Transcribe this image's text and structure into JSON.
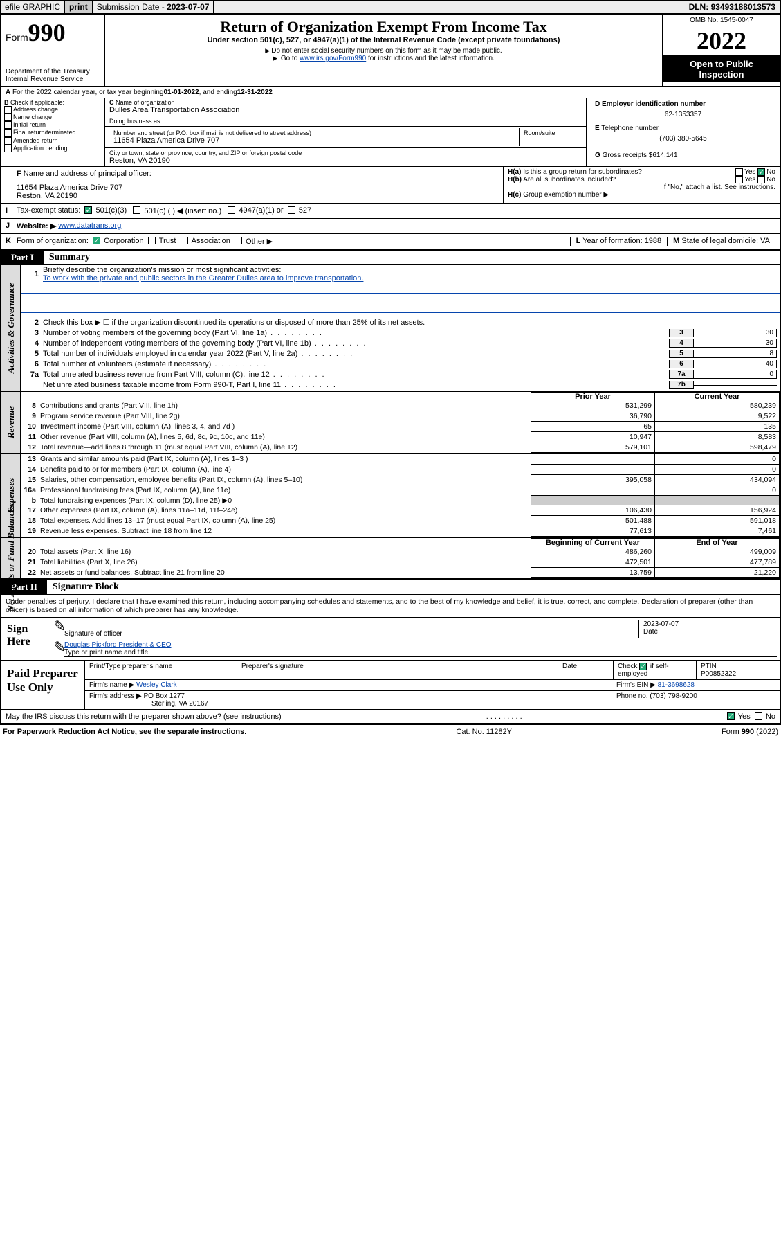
{
  "topbar": {
    "efile": "efile GRAPHIC",
    "print": "print",
    "subdate_label": "Submission Date - ",
    "subdate": "2023-07-07",
    "dln_label": "DLN: ",
    "dln": "93493188013573"
  },
  "header": {
    "form_prefix": "Form",
    "form_number": "990",
    "dept1": "Department of the Treasury",
    "dept2": "Internal Revenue Service",
    "title": "Return of Organization Exempt From Income Tax",
    "subtitle": "Under section 501(c), 527, or 4947(a)(1) of the Internal Revenue Code (except private foundations)",
    "note1": "Do not enter social security numbers on this form as it may be made public.",
    "note2a": "Go to ",
    "note2_link": "www.irs.gov/Form990",
    "note2b": " for instructions and the latest information.",
    "omb": "OMB No. 1545-0047",
    "year": "2022",
    "open": "Open to Public Inspection"
  },
  "A": {
    "text": "For the 2022 calendar year, or tax year beginning ",
    "begin": "01-01-2022",
    "mid": " , and ending ",
    "end": "12-31-2022"
  },
  "B": {
    "label": "Check if applicable:",
    "opts": [
      "Address change",
      "Name change",
      "Initial return",
      "Final return/terminated",
      "Amended return",
      "Application pending"
    ]
  },
  "C": {
    "name_label": "Name of organization",
    "name": "Dulles Area Transportation Association",
    "dba_label": "Doing business as",
    "dba": "",
    "addr_label": "Number and street (or P.O. box if mail is not delivered to street address)",
    "room_label": "Room/suite",
    "addr": "11654 Plaza America Drive 707",
    "city_label": "City or town, state or province, country, and ZIP or foreign postal code",
    "city": "Reston, VA  20190"
  },
  "D": {
    "label": "Employer identification number",
    "val": "62-1353357"
  },
  "E": {
    "label": "Telephone number",
    "val": "(703) 380-5645"
  },
  "G": {
    "label": "Gross receipts $",
    "val": "614,141"
  },
  "F": {
    "label": "Name and address of principal officer:",
    "addr1": "11654 Plaza America Drive 707",
    "addr2": "Reston, VA  20190"
  },
  "H": {
    "a": "Is this a group return for subordinates?",
    "b": "Are all subordinates included?",
    "b2": "If \"No,\" attach a list. See instructions.",
    "c": "Group exemption number ▶",
    "yes": "Yes",
    "no": "No"
  },
  "I": {
    "label": "Tax-exempt status:",
    "opts": [
      "501(c)(3)",
      "501(c) (  ) ◀ (insert no.)",
      "4947(a)(1) or",
      "527"
    ]
  },
  "J": {
    "label": "Website: ▶",
    "val": "www.datatrans.org"
  },
  "K": {
    "label": "Form of organization:",
    "opts": [
      "Corporation",
      "Trust",
      "Association",
      "Other ▶"
    ]
  },
  "L": {
    "label": "Year of formation:",
    "val": "1988"
  },
  "M": {
    "label": "State of legal domicile:",
    "val": "VA"
  },
  "part1": {
    "tab": "Part I",
    "title": "Summary"
  },
  "summary": {
    "l1_label": "Briefly describe the organization's mission or most significant activities:",
    "l1_text": "To work with the private and public sectors in the Greater Dulles area to improve transportation.",
    "l2": "Check this box ▶ ☐ if the organization discontinued its operations or disposed of more than 25% of its net assets.",
    "rows_gov": [
      {
        "n": "3",
        "d": "Number of voting members of the governing body (Part VI, line 1a)",
        "k": "3",
        "v": "30"
      },
      {
        "n": "4",
        "d": "Number of independent voting members of the governing body (Part VI, line 1b)",
        "k": "4",
        "v": "30"
      },
      {
        "n": "5",
        "d": "Total number of individuals employed in calendar year 2022 (Part V, line 2a)",
        "k": "5",
        "v": "8"
      },
      {
        "n": "6",
        "d": "Total number of volunteers (estimate if necessary)",
        "k": "6",
        "v": "40"
      },
      {
        "n": "7a",
        "d": "Total unrelated business revenue from Part VIII, column (C), line 12",
        "k": "7a",
        "v": "0"
      },
      {
        "n": "",
        "d": "Net unrelated business taxable income from Form 990-T, Part I, line 11",
        "k": "7b",
        "v": ""
      }
    ],
    "hdr_prior": "Prior Year",
    "hdr_current": "Current Year",
    "revenue": [
      {
        "n": "8",
        "d": "Contributions and grants (Part VIII, line 1h)",
        "p": "531,299",
        "c": "580,239"
      },
      {
        "n": "9",
        "d": "Program service revenue (Part VIII, line 2g)",
        "p": "36,790",
        "c": "9,522"
      },
      {
        "n": "10",
        "d": "Investment income (Part VIII, column (A), lines 3, 4, and 7d )",
        "p": "65",
        "c": "135"
      },
      {
        "n": "11",
        "d": "Other revenue (Part VIII, column (A), lines 5, 6d, 8c, 9c, 10c, and 11e)",
        "p": "10,947",
        "c": "8,583"
      },
      {
        "n": "12",
        "d": "Total revenue—add lines 8 through 11 (must equal Part VIII, column (A), line 12)",
        "p": "579,101",
        "c": "598,479"
      }
    ],
    "expenses": [
      {
        "n": "13",
        "d": "Grants and similar amounts paid (Part IX, column (A), lines 1–3 )",
        "p": "",
        "c": "0"
      },
      {
        "n": "14",
        "d": "Benefits paid to or for members (Part IX, column (A), line 4)",
        "p": "",
        "c": "0"
      },
      {
        "n": "15",
        "d": "Salaries, other compensation, employee benefits (Part IX, column (A), lines 5–10)",
        "p": "395,058",
        "c": "434,094"
      },
      {
        "n": "16a",
        "d": "Professional fundraising fees (Part IX, column (A), line 11e)",
        "p": "",
        "c": "0"
      },
      {
        "n": "b",
        "d": "Total fundraising expenses (Part IX, column (D), line 25) ▶0",
        "p": "__BLANK",
        "c": "__BLANK"
      },
      {
        "n": "17",
        "d": "Other expenses (Part IX, column (A), lines 11a–11d, 11f–24e)",
        "p": "106,430",
        "c": "156,924"
      },
      {
        "n": "18",
        "d": "Total expenses. Add lines 13–17 (must equal Part IX, column (A), line 25)",
        "p": "501,488",
        "c": "591,018"
      },
      {
        "n": "19",
        "d": "Revenue less expenses. Subtract line 18 from line 12",
        "p": "77,613",
        "c": "7,461"
      }
    ],
    "hdr_begin": "Beginning of Current Year",
    "hdr_end": "End of Year",
    "assets": [
      {
        "n": "20",
        "d": "Total assets (Part X, line 16)",
        "p": "486,260",
        "c": "499,009"
      },
      {
        "n": "21",
        "d": "Total liabilities (Part X, line 26)",
        "p": "472,501",
        "c": "477,789"
      },
      {
        "n": "22",
        "d": "Net assets or fund balances. Subtract line 21 from line 20",
        "p": "13,759",
        "c": "21,220"
      }
    ]
  },
  "vtabs": {
    "gov": "Activities & Governance",
    "rev": "Revenue",
    "exp": "Expenses",
    "net": "Net Assets or Fund Balances"
  },
  "part2": {
    "tab": "Part II",
    "title": "Signature Block"
  },
  "penalty": "Under penalties of perjury, I declare that I have examined this return, including accompanying schedules and statements, and to the best of my knowledge and belief, it is true, correct, and complete. Declaration of preparer (other than officer) is based on all information of which preparer has any knowledge.",
  "sign": {
    "label": "Sign Here",
    "sig_label": "Signature of officer",
    "date_label": "Date",
    "date": "2023-07-07",
    "name": "Douglas Pickford  President & CEO",
    "name_label": "Type or print name and title"
  },
  "paid": {
    "label": "Paid Preparer Use Only",
    "h_name": "Print/Type preparer's name",
    "h_sig": "Preparer's signature",
    "h_date": "Date",
    "chk_label": "Check",
    "chk_suffix": "if self-employed",
    "ptin_label": "PTIN",
    "ptin": "P00852322",
    "firm_label": "Firm's name  ▶",
    "firm": "Wesley Clark",
    "ein_label": "Firm's EIN ▶",
    "ein": "81-3698628",
    "addr_label": "Firm's address ▶",
    "addr1": "PO Box 1277",
    "addr2": "Sterling, VA  20167",
    "phone_label": "Phone no.",
    "phone": "(703) 798-9200"
  },
  "discuss": {
    "q": "May the IRS discuss this return with the preparer shown above? (see instructions)",
    "yes": "Yes",
    "no": "No"
  },
  "footer": {
    "left": "For Paperwork Reduction Act Notice, see the separate instructions.",
    "mid": "Cat. No. 11282Y",
    "right_a": "Form ",
    "right_b": "990",
    "right_c": " (2022)"
  },
  "colors": {
    "link": "#0645ad",
    "check": "#28a745",
    "headerbg": "#eeeeee",
    "vtabbg": "#dddddd"
  }
}
